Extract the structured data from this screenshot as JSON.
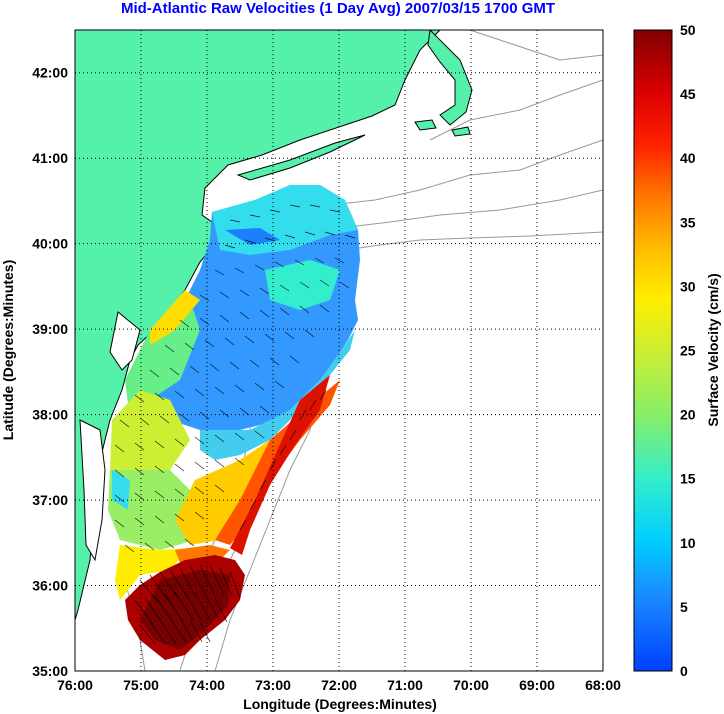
{
  "title": "Mid-Atlantic Raw Velocities (1 Day Avg) 2007/03/15 1700 GMT",
  "map": {
    "xlabel": "Longitude (Degrees:Minutes)",
    "ylabel": "Latitude (Degrees:Minutes)",
    "x_ticks": [
      "76:00",
      "75:00",
      "74:00",
      "73:00",
      "72:00",
      "71:00",
      "70:00",
      "69:00",
      "68:00"
    ],
    "y_ticks": [
      "35:00",
      "36:00",
      "37:00",
      "38:00",
      "39:00",
      "40:00",
      "41:00",
      "42:00"
    ],
    "x_range_deg_west": [
      76,
      68
    ],
    "y_range_deg_north": [
      35,
      42.5
    ],
    "grid": "dotted",
    "land_color": "#55f0aa",
    "coast_color": "#000000",
    "bathymetry_color": "#999999"
  },
  "colorbar": {
    "label": "Surface Velocity (cm/s)",
    "ticks": [
      "0",
      "5",
      "10",
      "15",
      "20",
      "25",
      "30",
      "35",
      "40",
      "45",
      "50"
    ],
    "range": [
      0,
      50
    ],
    "colormap": "jet"
  },
  "chart_data": {
    "type": "heatmap",
    "title": "Mid-Atlantic Raw Velocities (1 Day Avg) 2007/03/15 1700 GMT",
    "xlabel": "Longitude (Degrees:Minutes)",
    "ylabel": "Latitude (Degrees:Minutes)",
    "xlim": [
      76,
      68
    ],
    "ylim": [
      35,
      42.5
    ],
    "colorbar_label": "Surface Velocity (cm/s)",
    "colorbar_range": [
      0,
      50
    ],
    "regions": [
      {
        "lon": 73.5,
        "lat": 40.0,
        "velocity_cm_s": 10
      },
      {
        "lon": 72.7,
        "lat": 39.3,
        "velocity_cm_s": 13
      },
      {
        "lon": 74.6,
        "lat": 39.0,
        "velocity_cm_s": 27
      },
      {
        "lon": 74.0,
        "lat": 38.7,
        "velocity_cm_s": 20
      },
      {
        "lon": 73.0,
        "lat": 38.5,
        "velocity_cm_s": 7
      },
      {
        "lon": 74.8,
        "lat": 38.0,
        "velocity_cm_s": 24
      },
      {
        "lon": 73.8,
        "lat": 37.8,
        "velocity_cm_s": 14
      },
      {
        "lon": 72.9,
        "lat": 37.6,
        "velocity_cm_s": 42
      },
      {
        "lon": 73.6,
        "lat": 37.0,
        "velocity_cm_s": 30
      },
      {
        "lon": 75.2,
        "lat": 37.0,
        "velocity_cm_s": 11
      },
      {
        "lon": 74.2,
        "lat": 36.3,
        "velocity_cm_s": 47
      },
      {
        "lon": 74.5,
        "lat": 35.6,
        "velocity_cm_s": 50
      }
    ]
  }
}
